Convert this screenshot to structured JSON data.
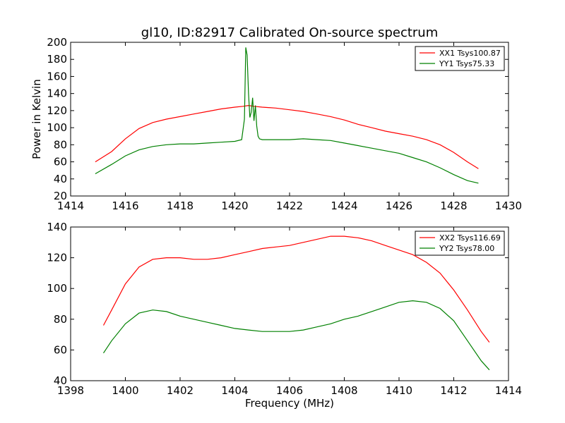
{
  "chart_data": [
    {
      "type": "line",
      "title": "gl10, ID:82917 Calibrated On-source spectrum",
      "xlabel": "",
      "ylabel": "Power in Kelvin",
      "xlim": [
        1414,
        1430
      ],
      "ylim": [
        20,
        200
      ],
      "xticks": [
        "1414",
        "1416",
        "1418",
        "1420",
        "1422",
        "1424",
        "1426",
        "1428",
        "1430"
      ],
      "yticks": [
        "20",
        "40",
        "60",
        "80",
        "100",
        "120",
        "140",
        "160",
        "180",
        "200"
      ],
      "legend": "top-right",
      "grid": false,
      "series": [
        {
          "name": "XX1 Tsys100.87",
          "color": "#ff0000",
          "x": [
            1414.9,
            1415.5,
            1416,
            1416.5,
            1417,
            1417.5,
            1418,
            1418.5,
            1419,
            1419.5,
            1420,
            1420.3,
            1420.5,
            1420.7,
            1421,
            1421.5,
            1422,
            1422.5,
            1423,
            1423.5,
            1424,
            1424.5,
            1425,
            1425.5,
            1426,
            1426.5,
            1427,
            1427.5,
            1428,
            1428.5,
            1428.9
          ],
          "y": [
            60,
            72,
            87,
            99,
            106,
            110,
            113,
            116,
            119,
            122,
            124,
            125,
            126,
            125,
            124,
            123,
            121,
            119,
            116,
            113,
            109,
            104,
            100,
            96,
            93,
            90,
            86,
            80,
            71,
            60,
            52
          ]
        },
        {
          "name": "YY1 Tsys75.33",
          "color": "#008000",
          "x": [
            1414.9,
            1415.5,
            1416,
            1416.5,
            1417,
            1417.5,
            1418,
            1418.5,
            1419,
            1419.5,
            1420,
            1420.25,
            1420.35,
            1420.4,
            1420.45,
            1420.5,
            1420.55,
            1420.6,
            1420.65,
            1420.7,
            1420.75,
            1420.8,
            1420.85,
            1420.9,
            1421,
            1421.5,
            1422,
            1422.5,
            1423,
            1423.5,
            1424,
            1424.5,
            1425,
            1425.5,
            1426,
            1426.5,
            1427,
            1427.5,
            1428,
            1428.5,
            1428.9
          ],
          "y": [
            46,
            57,
            67,
            74,
            78,
            80,
            81,
            81,
            82,
            83,
            84,
            86,
            110,
            194,
            185,
            140,
            112,
            118,
            135,
            108,
            126,
            102,
            90,
            87,
            86,
            86,
            86,
            87,
            86,
            85,
            82,
            79,
            76,
            73,
            70,
            65,
            60,
            53,
            45,
            38,
            35
          ]
        }
      ]
    },
    {
      "type": "line",
      "title": "",
      "xlabel": "Frequency (MHz)",
      "ylabel": "",
      "xlim": [
        1398,
        1414
      ],
      "ylim": [
        40,
        140
      ],
      "xticks": [
        "1398",
        "1400",
        "1402",
        "1404",
        "1406",
        "1408",
        "1410",
        "1412",
        "1414"
      ],
      "yticks": [
        "40",
        "60",
        "80",
        "100",
        "120",
        "140"
      ],
      "legend": "top-right",
      "grid": false,
      "series": [
        {
          "name": "XX2 Tsys116.69",
          "color": "#ff0000",
          "x": [
            1399.2,
            1399.5,
            1400,
            1400.5,
            1401,
            1401.5,
            1402,
            1402.5,
            1403,
            1403.5,
            1404,
            1404.5,
            1405,
            1405.5,
            1406,
            1406.5,
            1407,
            1407.5,
            1408,
            1408.5,
            1409,
            1409.5,
            1410,
            1410.5,
            1411,
            1411.5,
            1412,
            1412.5,
            1413,
            1413.3
          ],
          "y": [
            76,
            86,
            103,
            114,
            119,
            120,
            120,
            119,
            119,
            120,
            122,
            124,
            126,
            127,
            128,
            130,
            132,
            134,
            134,
            133,
            131,
            128,
            125,
            122,
            117,
            110,
            99,
            86,
            72,
            65
          ]
        },
        {
          "name": "YY2 Tsys78.00",
          "color": "#008000",
          "x": [
            1399.2,
            1399.5,
            1400,
            1400.5,
            1401,
            1401.5,
            1402,
            1402.5,
            1403,
            1403.5,
            1404,
            1404.5,
            1405,
            1405.5,
            1406,
            1406.5,
            1407,
            1407.5,
            1408,
            1408.5,
            1409,
            1409.5,
            1410,
            1410.5,
            1411,
            1411.5,
            1412,
            1412.5,
            1413,
            1413.3
          ],
          "y": [
            58,
            66,
            77,
            84,
            86,
            85,
            82,
            80,
            78,
            76,
            74,
            73,
            72,
            72,
            72,
            73,
            75,
            77,
            80,
            82,
            85,
            88,
            91,
            92,
            91,
            87,
            79,
            66,
            53,
            47
          ]
        }
      ]
    }
  ]
}
